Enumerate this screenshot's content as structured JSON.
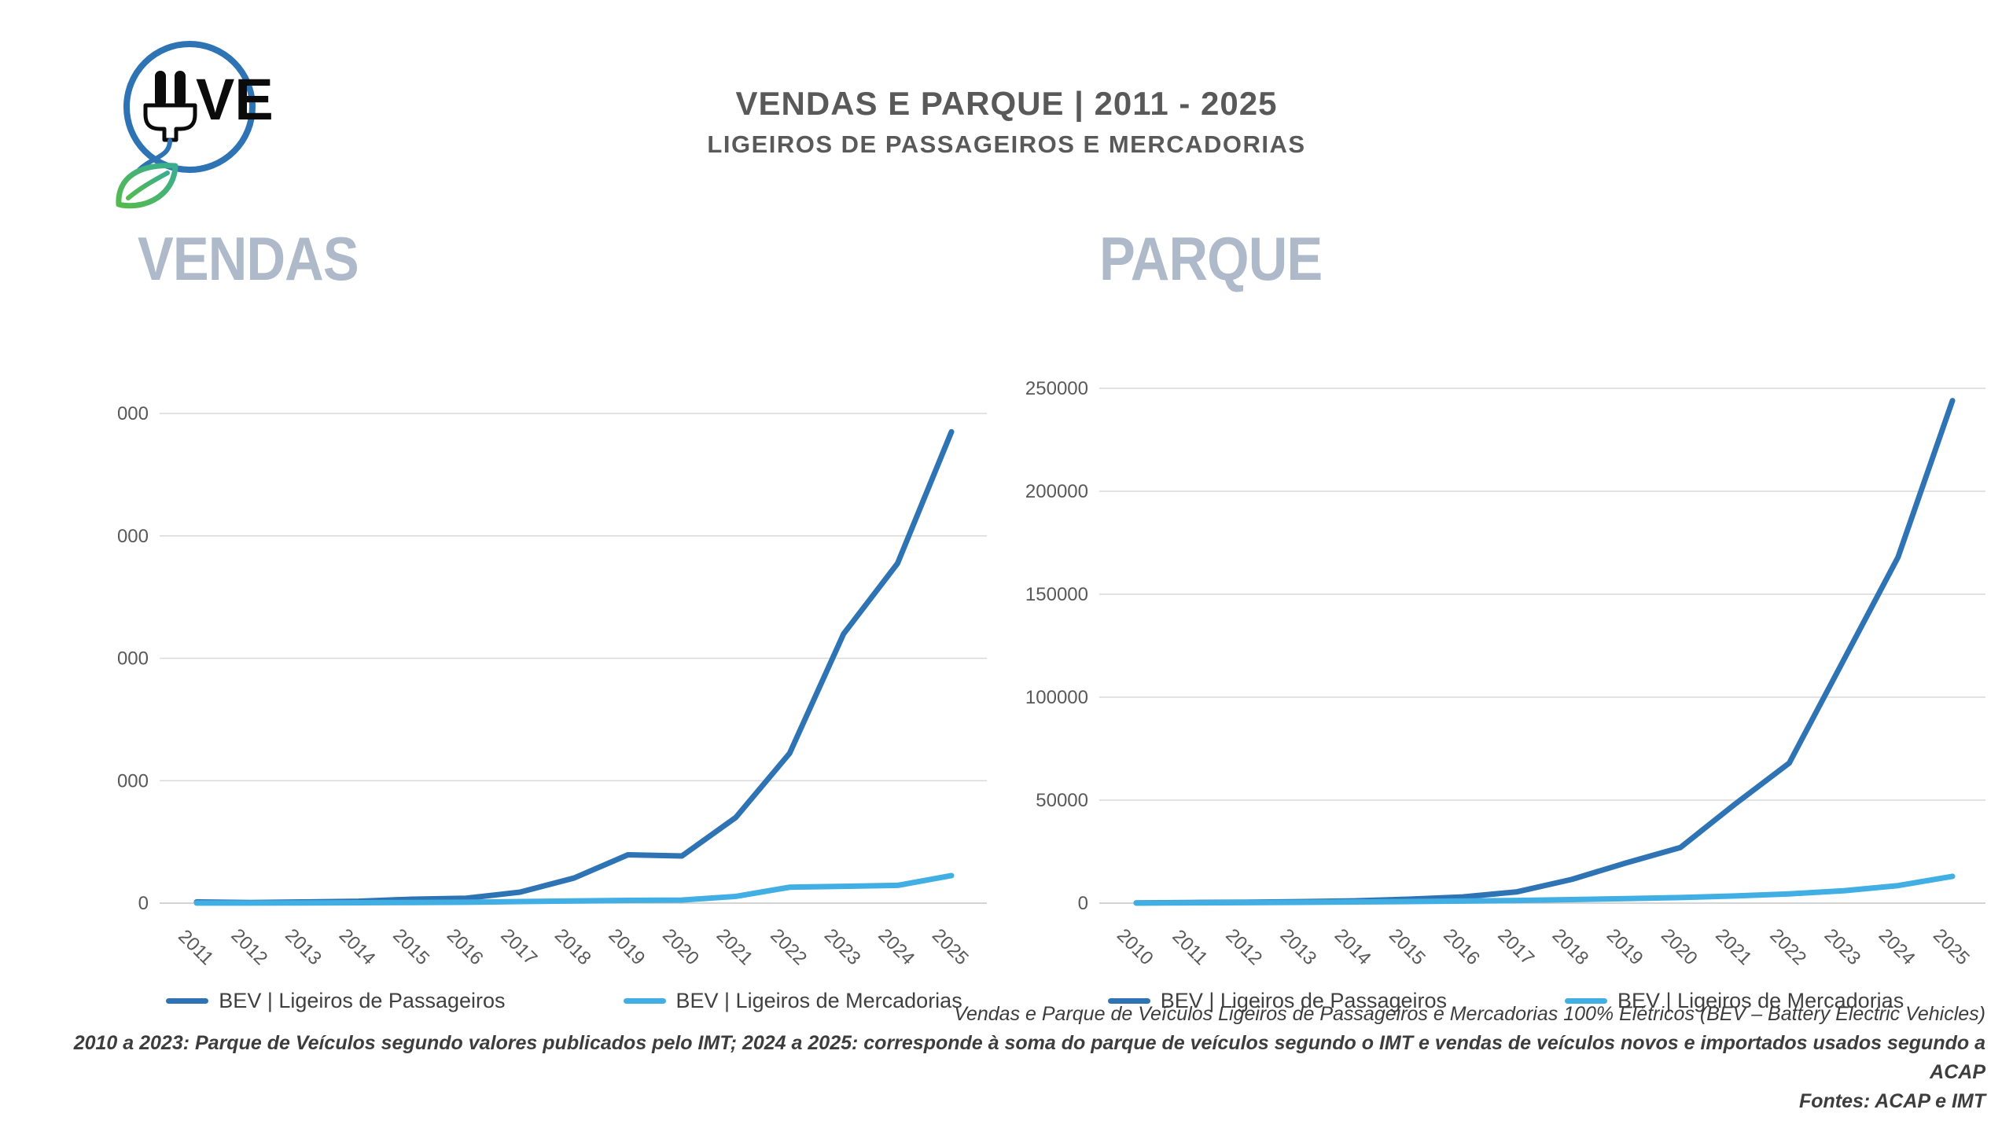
{
  "header": {
    "title": "VENDAS E PARQUE | 2011 - 2025",
    "subtitle": "LIGEIROS DE PASSAGEIROS E MERCADORIAS",
    "logo_text": "VE"
  },
  "colors": {
    "passageiros": "#2E74B5",
    "mercadorias": "#41AEE4",
    "gridline": "#D9D9D9",
    "zero_line": "#C6C6C6",
    "axis_text": "#595959",
    "watermark": "#AEB9CA",
    "logo_blue": "#2E74B5",
    "leaf_green": "#54BA4E",
    "leaf_teal": "#3AAE8F"
  },
  "chart_data": [
    {
      "id": "vendas",
      "type": "line",
      "title": "VENDAS",
      "categories": [
        "2011",
        "2012",
        "2013",
        "2014",
        "2015",
        "2016",
        "2017",
        "2018",
        "2019",
        "2020",
        "2021",
        "2022",
        "2023",
        "2024",
        "2025"
      ],
      "series": [
        {
          "name": "BEV | Ligeiros de Passageiros",
          "color_key": "passageiros",
          "values": [
            200,
            100,
            200,
            300,
            650,
            800,
            1800,
            4100,
            7900,
            7700,
            14000,
            24500,
            44000,
            55500,
            77000
          ]
        },
        {
          "name": "BEV | Ligeiros de Mercadorias",
          "color_key": "mercadorias",
          "values": [
            20,
            20,
            30,
            60,
            100,
            150,
            250,
            350,
            450,
            500,
            1100,
            2600,
            2750,
            2900,
            4500
          ]
        }
      ],
      "ylim": [
        0,
        80000
      ],
      "ytick_step": 20000,
      "grid": true,
      "legend_position": "bottom",
      "xlabel": "",
      "ylabel": ""
    },
    {
      "id": "parque",
      "type": "line",
      "title": "PARQUE",
      "categories": [
        "2010",
        "2011",
        "2012",
        "2013",
        "2014",
        "2015",
        "2016",
        "2017",
        "2018",
        "2019",
        "2020",
        "2021",
        "2022",
        "2023",
        "2024",
        "2025"
      ],
      "series": [
        {
          "name": "BEV | Ligeiros de Passageiros",
          "color_key": "passageiros",
          "values": [
            100,
            300,
            450,
            700,
            1100,
            1900,
            3000,
            5500,
            11500,
            19500,
            27000,
            48000,
            68000,
            118000,
            168000,
            244000
          ]
        },
        {
          "name": "BEV | Ligeiros de Mercadorias",
          "color_key": "mercadorias",
          "values": [
            50,
            150,
            250,
            400,
            550,
            750,
            1000,
            1300,
            1700,
            2200,
            2700,
            3500,
            4500,
            6000,
            8500,
            13000
          ]
        }
      ],
      "ylim": [
        0,
        250000
      ],
      "ytick_step": 50000,
      "grid": true,
      "legend_position": "bottom",
      "xlabel": "",
      "ylabel": ""
    }
  ],
  "footer": {
    "line1": "Vendas e Parque de Veículos Ligeiros de Passageiros e Mercadorias 100% Elétricos (BEV – Battery Electric Vehicles)",
    "line2": "2010 a 2023: Parque de Veículos segundo valores publicados pelo IMT; 2024 a 2025: corresponde à soma do parque de veículos segundo o IMT e vendas de veículos novos e importados usados segundo a ACAP",
    "line3": "Fontes: ACAP e IMT"
  }
}
